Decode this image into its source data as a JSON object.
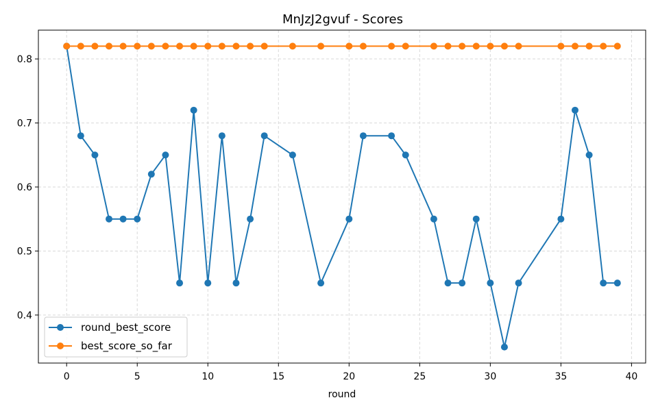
{
  "chart_data": {
    "type": "line",
    "title": "MnJzJ2gvuf - Scores",
    "xlabel": "round",
    "ylabel": "",
    "xlim": [
      -2,
      41
    ],
    "ylim": [
      0.325,
      0.845
    ],
    "xticks": [
      0,
      5,
      10,
      15,
      20,
      25,
      30,
      35,
      40
    ],
    "yticks": [
      0.4,
      0.5,
      0.6,
      0.7,
      0.8
    ],
    "grid": true,
    "legend_position": "bottom-left",
    "x": [
      0,
      1,
      2,
      3,
      4,
      5,
      6,
      7,
      8,
      9,
      10,
      11,
      12,
      13,
      14,
      16,
      18,
      20,
      21,
      23,
      24,
      26,
      27,
      28,
      29,
      30,
      31,
      32,
      35,
      36,
      37,
      38,
      39
    ],
    "series": [
      {
        "name": "round_best_score",
        "color": "#1f77b4",
        "values": [
          0.82,
          0.68,
          0.65,
          0.55,
          0.55,
          0.55,
          0.62,
          0.65,
          0.45,
          0.72,
          0.45,
          0.68,
          0.45,
          0.55,
          0.68,
          0.65,
          0.45,
          0.55,
          0.68,
          0.68,
          0.65,
          0.55,
          0.45,
          0.45,
          0.55,
          0.45,
          0.35,
          0.45,
          0.55,
          0.72,
          0.65,
          0.45,
          0.45
        ]
      },
      {
        "name": "best_score_so_far",
        "color": "#ff7f0e",
        "values": [
          0.82,
          0.82,
          0.82,
          0.82,
          0.82,
          0.82,
          0.82,
          0.82,
          0.82,
          0.82,
          0.82,
          0.82,
          0.82,
          0.82,
          0.82,
          0.82,
          0.82,
          0.82,
          0.82,
          0.82,
          0.82,
          0.82,
          0.82,
          0.82,
          0.82,
          0.82,
          0.82,
          0.82,
          0.82,
          0.82,
          0.82,
          0.82,
          0.82
        ]
      }
    ]
  }
}
